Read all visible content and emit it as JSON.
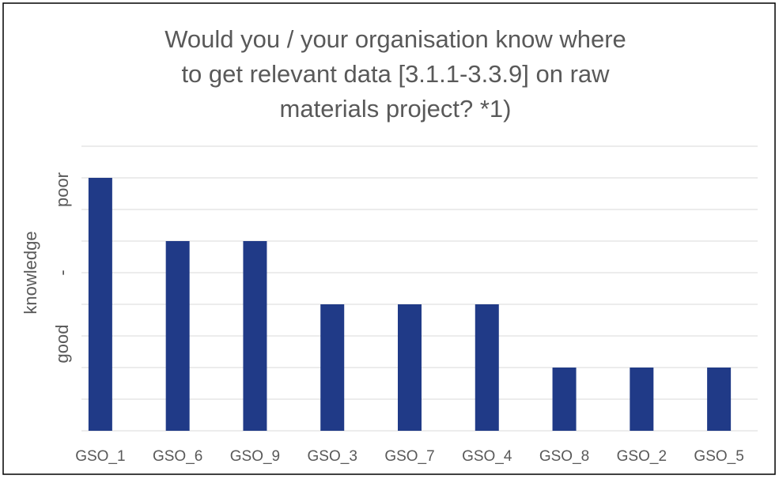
{
  "chart_data": {
    "type": "bar",
    "title": "Would you / your organisation know where to get relevant data [3.1.1-3.3.9] on raw materials project? *1)",
    "y_label": "knowledge",
    "y_scale_labels": [
      "good",
      "-",
      "poor"
    ],
    "categories": [
      "GSO_1",
      "GSO_6",
      "GSO_9",
      "GSO_3",
      "GSO_7",
      "GSO_4",
      "GSO_8",
      "GSO_2",
      "GSO_5"
    ],
    "values": [
      8,
      6,
      6,
      4,
      4,
      4,
      2,
      2,
      2
    ],
    "color": "#203a87",
    "ylim": [
      0,
      9
    ],
    "yticks": [
      0,
      1,
      2,
      3,
      4,
      5,
      6,
      7,
      8,
      9
    ],
    "grid": true
  }
}
